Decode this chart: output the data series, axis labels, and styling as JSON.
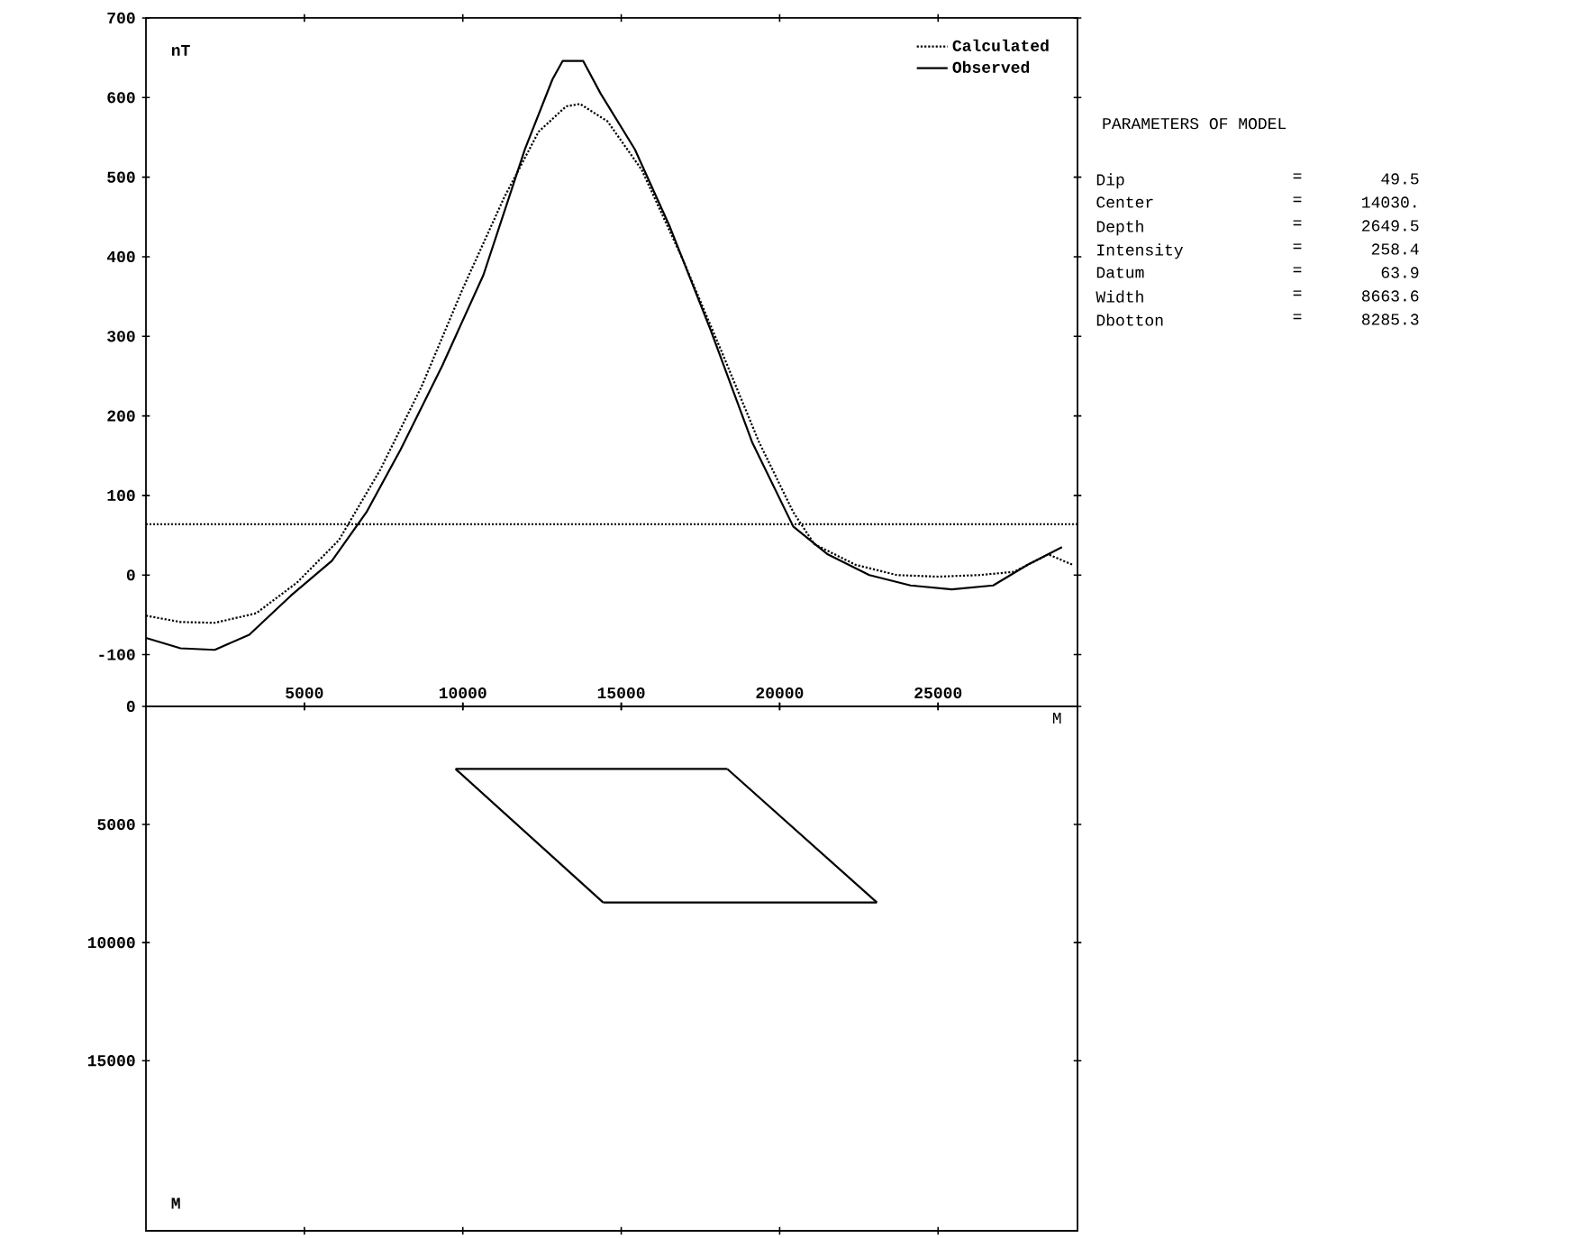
{
  "chart_data": [
    {
      "type": "line",
      "ylabel": "nT",
      "xlabel": "M",
      "xlim": [
        0,
        29400
      ],
      "ylim": [
        -165,
        700
      ],
      "xticks": [
        5000,
        10000,
        15000,
        20000,
        25000
      ],
      "yticks": [
        -100,
        0,
        100,
        200,
        300,
        400,
        500,
        600,
        700
      ],
      "legend": "top right",
      "grid": false,
      "x": [
        0,
        1090,
        2170,
        3260,
        4570,
        5870,
        6960,
        8040,
        9350,
        10650,
        11960,
        12830,
        13150,
        13800,
        14350,
        15430,
        16520,
        17830,
        19130,
        20430,
        21520,
        22830,
        24130,
        25430,
        26740,
        27830,
        28910
      ],
      "series": [
        {
          "name": "Calculated",
          "color": "#000000",
          "line_style": "dotted",
          "x": [
            0,
            1090,
            2170,
            3480,
            4780,
            6090,
            7390,
            8700,
            10000,
            11300,
            12390,
            13260,
            13700,
            14570,
            15650,
            16960,
            18260,
            19350,
            20430,
            21090,
            22390,
            23700,
            25000,
            26300,
            27390,
            28480,
            29240
          ],
          "values": [
            -51,
            -59,
            -60,
            -48,
            -9,
            44,
            132,
            237,
            360,
            474,
            557,
            589,
            592,
            570,
            509,
            395,
            272,
            167,
            79,
            39,
            13,
            0,
            -2,
            0,
            4,
            26,
            13
          ]
        },
        {
          "name": "Observed",
          "color": "#000000",
          "line_style": "solid",
          "values": [
            -79,
            -92,
            -94,
            -75,
            -26,
            18,
            79,
            158,
            263,
            377,
            535,
            623,
            646,
            646,
            605,
            535,
            439,
            307,
            167,
            61,
            26,
            0,
            -13,
            -18,
            -13,
            13,
            35
          ]
        }
      ],
      "ref_lines": [
        {
          "axis": "y",
          "value": 63.9,
          "color": "#000000",
          "line_style": "dotted"
        }
      ]
    },
    {
      "type": "line",
      "ylabel": "M",
      "xlim": [
        0,
        29400
      ],
      "ylim": [
        22200,
        0
      ],
      "xticks": [
        5000,
        10000,
        15000,
        20000,
        25000
      ],
      "yticks": [
        0,
        5000,
        10000,
        15000
      ],
      "tick_labels": "y",
      "grid": false,
      "series": [
        {
          "color": "#000000",
          "line_style": "solid",
          "x": [
            9770,
            18350
          ],
          "values": [
            2650,
            2650
          ]
        },
        {
          "color": "#000000",
          "line_style": "solid",
          "x": [
            18350,
            23070
          ],
          "values": [
            2650,
            8300
          ]
        },
        {
          "color": "#000000",
          "line_style": "solid",
          "x": [
            14430,
            23070
          ],
          "values": [
            8300,
            8300
          ]
        },
        {
          "color": "#000000",
          "line_style": "solid",
          "x": [
            9770,
            14430
          ],
          "values": [
            2650,
            8300
          ]
        }
      ]
    },
    {
      "type": "other",
      "title": "PARAMETERS OF MODEL",
      "annotations": [
        "Dip",
        "=",
        "49.5",
        "Center",
        "=",
        "14030.",
        "Depth",
        "=",
        "2649.5",
        "Intensity",
        "=",
        "258.4",
        "Datum",
        "=",
        "63.9",
        "Width",
        "=",
        "8663.6",
        "Dbotton",
        "=",
        "8285.3"
      ]
    }
  ]
}
